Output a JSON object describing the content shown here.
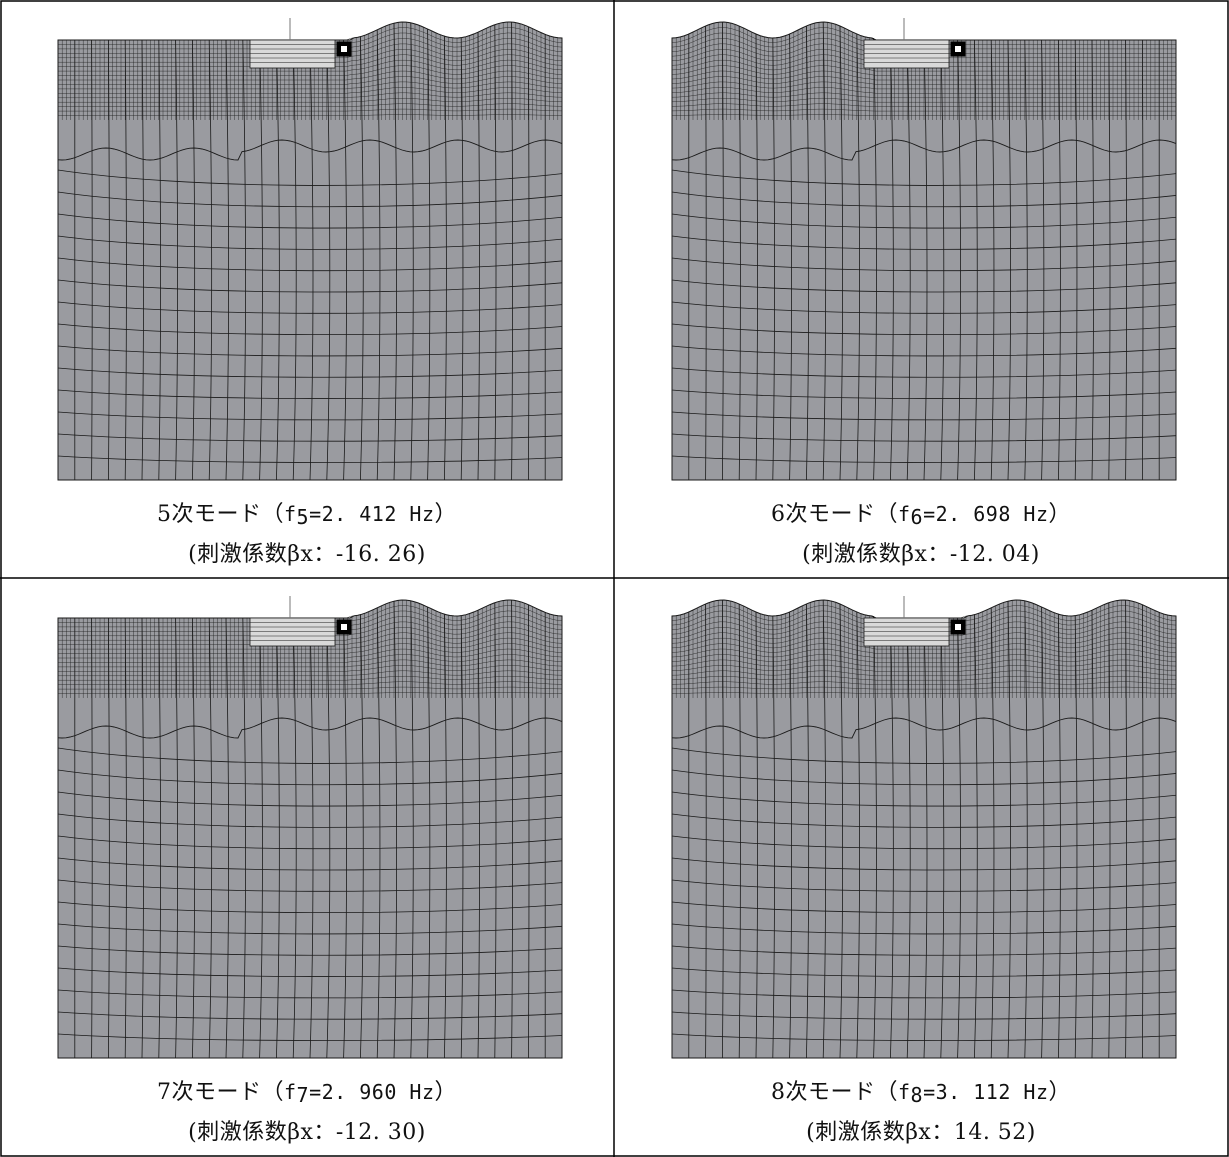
{
  "panels": [
    {
      "mode_label": "5次モード（",
      "f_symbol": "f",
      "f_sub": "5",
      "f_value": "=2. 412 Hz",
      "close": "）",
      "participation": "(刺激係数βx：-16. 26)",
      "wave_side": "right",
      "colors": {
        "fill": "#9a9ba0",
        "line": "#1a1a1a"
      }
    },
    {
      "mode_label": "6次モード（",
      "f_symbol": "f",
      "f_sub": "6",
      "f_value": "=2. 698 Hz",
      "close": "）",
      "participation": "(刺激係数βx：-12. 04)",
      "wave_side": "left",
      "colors": {
        "fill": "#9a9ba0",
        "line": "#1a1a1a"
      }
    },
    {
      "mode_label": "7次モード（",
      "f_symbol": "f",
      "f_sub": "7",
      "f_value": "=2. 960 Hz",
      "close": "）",
      "participation": "(刺激係数βx：-12. 30)",
      "wave_side": "right",
      "colors": {
        "fill": "#9a9ba0",
        "line": "#1a1a1a"
      }
    },
    {
      "mode_label": "8次モード（",
      "f_symbol": "f",
      "f_sub": "8",
      "f_value": "=3. 112 Hz",
      "close": "）",
      "participation": "(刺激係数βx：14. 52)",
      "wave_side": "both",
      "colors": {
        "fill": "#9a9ba0",
        "line": "#1a1a1a"
      }
    }
  ]
}
